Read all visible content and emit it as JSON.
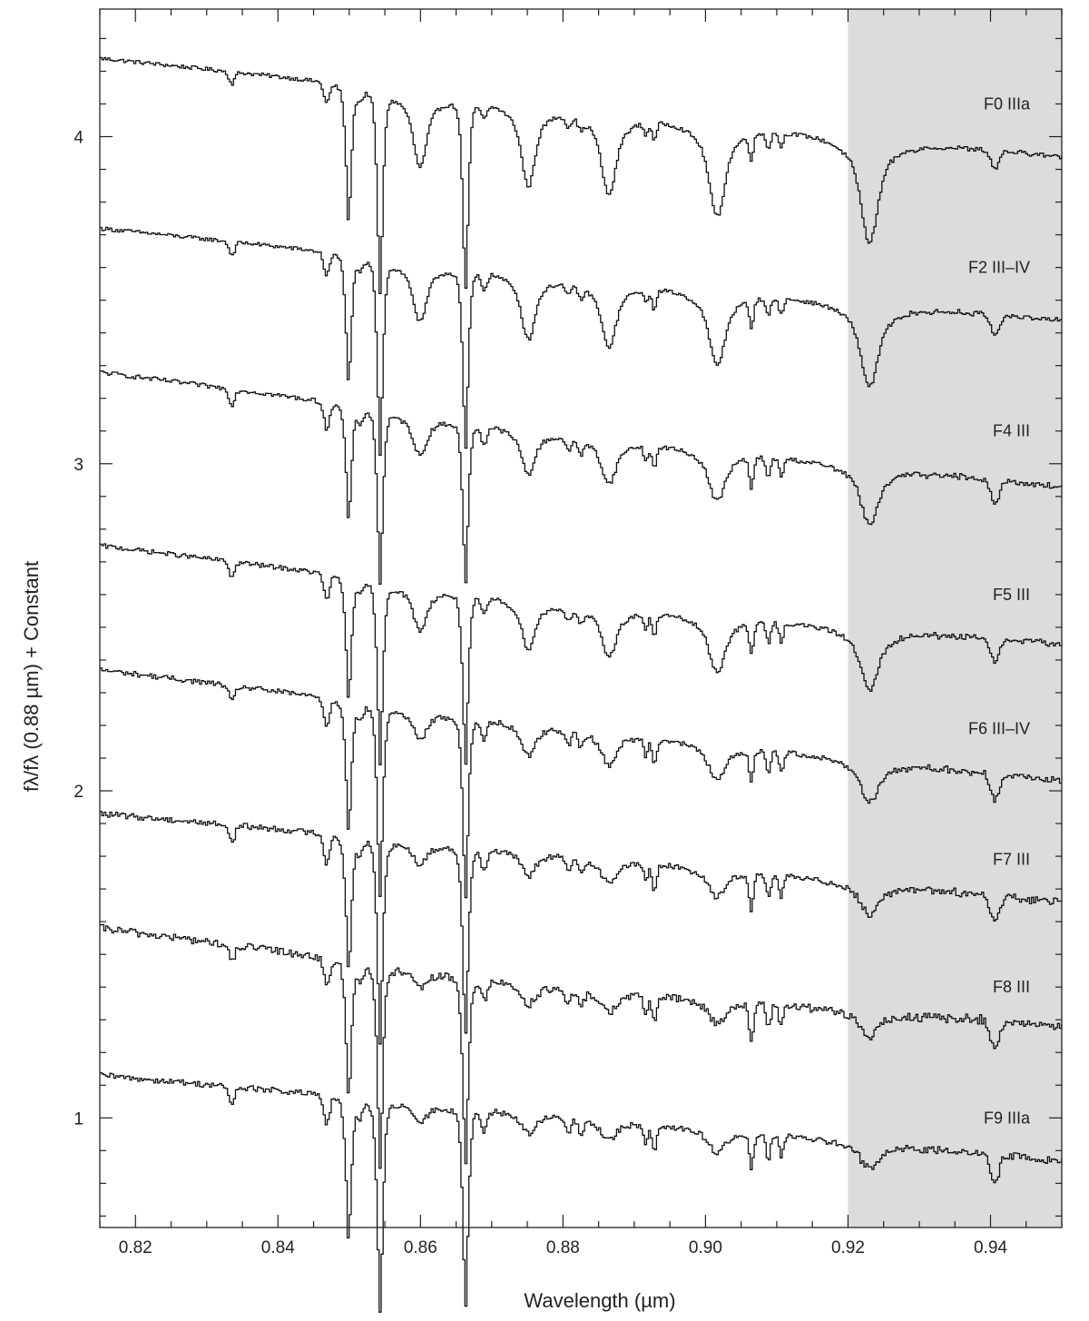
{
  "chart_data": {
    "type": "line",
    "xlabel": "Wavelength (µm)",
    "ylabel": "fλ/fλ (0.88 µm) + Constant",
    "xlim": [
      0.815,
      0.95
    ],
    "ylim": [
      0.665,
      4.39
    ],
    "x_ticks": [
      "0.82",
      "0.84",
      "0.86",
      "0.88",
      "0.90",
      "0.92",
      "0.94"
    ],
    "y_ticks": [
      "1",
      "2",
      "3",
      "4"
    ],
    "shaded_region": {
      "x": [
        0.92,
        0.95
      ],
      "color": "#dcdcdc"
    },
    "line_color": "#111111",
    "absorption_lines_um": [
      0.8334,
      0.8467,
      0.8498,
      0.8542,
      0.8598,
      0.8662,
      0.875,
      0.8863,
      0.8927,
      0.9015,
      0.9063,
      0.9087,
      0.9105,
      0.9229,
      0.9405
    ],
    "series": [
      {
        "name": "F0 IIIa",
        "label_y": 4.1,
        "start_y": 4.24,
        "level_088": 4.1,
        "end_y": 3.94,
        "line_scale": 1.0,
        "hydrogen_strength": 1.0,
        "noise": 0.006
      },
      {
        "name": "F2 III–IV",
        "label_y": 3.6,
        "start_y": 3.72,
        "level_088": 3.58,
        "end_y": 3.44,
        "line_scale": 0.95,
        "hydrogen_strength": 0.8,
        "noise": 0.006
      },
      {
        "name": "F4 III",
        "label_y": 3.1,
        "start_y": 3.28,
        "level_088": 3.1,
        "end_y": 2.93,
        "line_scale": 0.85,
        "hydrogen_strength": 0.55,
        "noise": 0.007
      },
      {
        "name": "F5 III",
        "label_y": 2.6,
        "start_y": 2.75,
        "level_088": 2.58,
        "end_y": 2.45,
        "line_scale": 0.9,
        "hydrogen_strength": 0.6,
        "noise": 0.007
      },
      {
        "name": "F6 III–IV",
        "label_y": 2.19,
        "start_y": 2.37,
        "level_088": 2.2,
        "end_y": 2.03,
        "line_scale": 0.95,
        "hydrogen_strength": 0.4,
        "noise": 0.008
      },
      {
        "name": "F7 III",
        "label_y": 1.79,
        "start_y": 1.93,
        "level_088": 1.81,
        "end_y": 1.66,
        "line_scale": 1.0,
        "hydrogen_strength": 0.3,
        "noise": 0.009
      },
      {
        "name": "F8 III",
        "label_y": 1.4,
        "start_y": 1.58,
        "level_088": 1.4,
        "end_y": 1.28,
        "line_scale": 1.0,
        "hydrogen_strength": 0.25,
        "noise": 0.012
      },
      {
        "name": "F9 IIIa",
        "label_y": 1.0,
        "start_y": 1.13,
        "level_088": 1.01,
        "end_y": 0.87,
        "line_scale": 1.05,
        "hydrogen_strength": 0.25,
        "noise": 0.009
      }
    ]
  }
}
